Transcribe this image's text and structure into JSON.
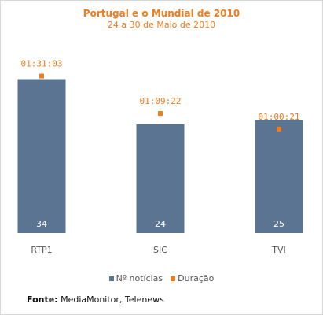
{
  "chart_data": {
    "type": "bar",
    "title": "Portugal e o Mundial de 2010",
    "subtitle": "24 a 30 de Maio de 2010",
    "categories": [
      "RTP1",
      "SIC",
      "TVI"
    ],
    "series": [
      {
        "name": "Nº notícias",
        "values": [
          34,
          24,
          25
        ],
        "color": "#5a7491"
      },
      {
        "name": "Duração",
        "values": [
          "01:31:03",
          "01:09:22",
          "01:00:21"
        ],
        "seconds": [
          5463,
          4162,
          3621
        ],
        "color": "#f07c1d"
      }
    ],
    "bar_ylim": [
      0,
      40
    ],
    "duration_ylim_seconds": [
      0,
      6300
    ],
    "legend_position": "bottom",
    "grid": false
  },
  "source": {
    "label": "Fonte:",
    "text": "MediaMonitor, Telenews"
  }
}
